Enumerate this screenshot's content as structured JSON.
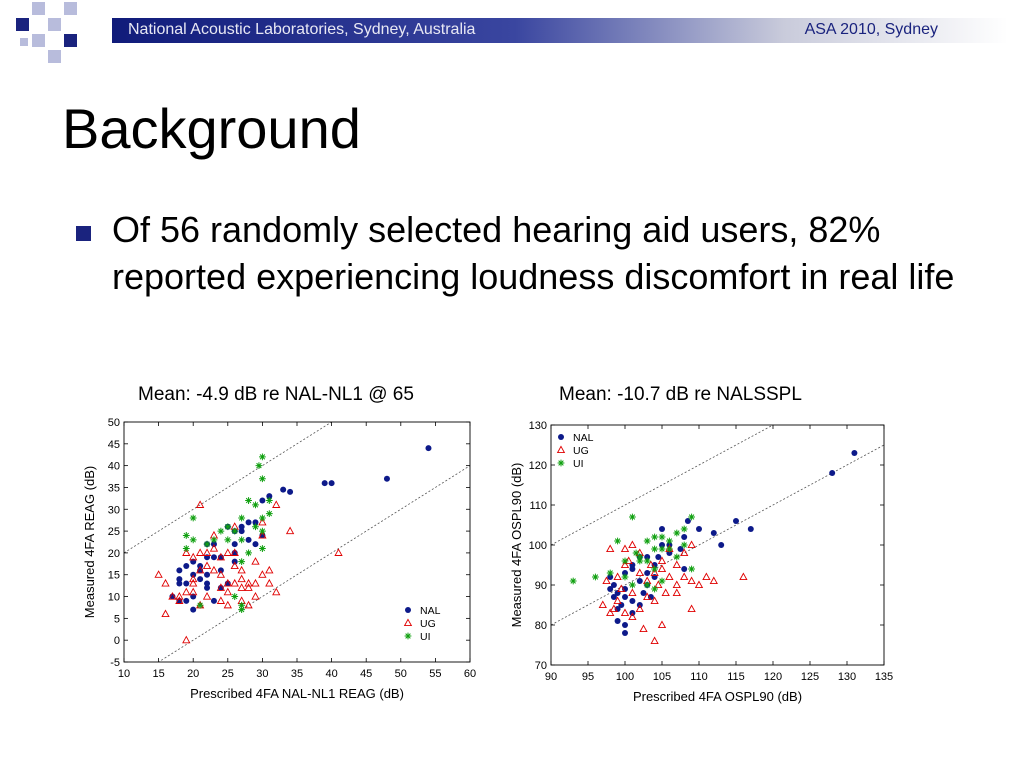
{
  "header": {
    "left_text": "National Acoustic Laboratories, Sydney, Australia",
    "right_text": "ASA 2010, Sydney"
  },
  "slide": {
    "title": "Background",
    "bullet": "Of 56 randomly selected hearing aid users, 82% reported experiencing loudness discomfort in real life"
  },
  "colors": {
    "nal": "#0d1a8a",
    "ug": "#e00000",
    "ui": "#10a010",
    "header": "#101b7a"
  },
  "chart_data": [
    {
      "type": "scatter",
      "caption": "Mean: -4.9 dB re NAL-NL1 @ 65",
      "xlabel": "Prescribed 4FA NAL-NL1 REAG (dB)",
      "ylabel": "Measured 4FA REAG (dB)",
      "xlim": [
        10,
        60
      ],
      "ylim": [
        -5,
        50
      ],
      "xticks": [
        10,
        15,
        20,
        25,
        30,
        35,
        40,
        45,
        50,
        55,
        60
      ],
      "yticks": [
        -5,
        0,
        5,
        10,
        15,
        20,
        25,
        30,
        35,
        40,
        45,
        50
      ],
      "reference_lines": [
        {
          "x": [
            10,
            60
          ],
          "y": [
            20,
            70
          ]
        },
        {
          "x": [
            10,
            60
          ],
          "y": [
            -10,
            40
          ]
        }
      ],
      "legend_position": "bottom-right",
      "series": [
        {
          "name": "NAL",
          "marker": "dot",
          "points": [
            [
              54,
              44
            ],
            [
              48,
              37
            ],
            [
              40,
              36
            ],
            [
              39,
              36
            ],
            [
              34,
              34
            ],
            [
              33,
              34.5
            ],
            [
              31,
              33
            ],
            [
              30,
              32
            ],
            [
              28,
              27
            ],
            [
              26,
              25
            ],
            [
              27,
              26
            ],
            [
              25,
              26
            ],
            [
              23,
              22
            ],
            [
              22,
              22
            ],
            [
              21,
              16
            ],
            [
              20,
              18
            ],
            [
              19,
              17
            ],
            [
              19,
              13
            ],
            [
              18,
              16
            ],
            [
              18,
              14
            ],
            [
              18,
              9
            ],
            [
              17,
              10
            ],
            [
              20,
              15
            ],
            [
              21,
              14
            ],
            [
              22,
              15
            ],
            [
              22,
              13
            ],
            [
              23,
              9
            ],
            [
              24,
              16
            ],
            [
              24,
              19
            ],
            [
              25,
              13
            ],
            [
              26,
              18
            ],
            [
              26,
              22
            ],
            [
              27,
              25
            ],
            [
              28,
              23
            ],
            [
              29,
              22
            ],
            [
              29,
              27
            ],
            [
              30,
              24
            ],
            [
              22,
              19
            ],
            [
              20,
              7
            ],
            [
              23,
              19
            ],
            [
              21,
              17
            ],
            [
              19,
              9
            ],
            [
              18,
              13
            ],
            [
              20,
              10
            ],
            [
              24,
              12
            ],
            [
              22,
              12
            ],
            [
              26,
              20
            ]
          ]
        },
        {
          "name": "UG",
          "marker": "triangle",
          "points": [
            [
              15,
              15
            ],
            [
              16,
              13
            ],
            [
              16,
              6
            ],
            [
              17,
              10
            ],
            [
              18,
              10
            ],
            [
              18,
              9
            ],
            [
              19,
              0
            ],
            [
              19,
              20
            ],
            [
              19,
              11
            ],
            [
              20,
              13
            ],
            [
              20,
              11
            ],
            [
              20,
              14
            ],
            [
              21,
              31
            ],
            [
              21,
              20
            ],
            [
              21,
              16
            ],
            [
              21,
              8
            ],
            [
              22,
              17
            ],
            [
              22,
              10
            ],
            [
              23,
              24
            ],
            [
              23,
              21
            ],
            [
              23,
              16
            ],
            [
              24,
              19
            ],
            [
              24,
              15
            ],
            [
              24,
              12
            ],
            [
              24,
              9
            ],
            [
              25,
              20
            ],
            [
              25,
              13
            ],
            [
              25,
              8
            ],
            [
              26,
              17
            ],
            [
              26,
              13
            ],
            [
              26,
              20
            ],
            [
              27,
              14
            ],
            [
              27,
              16
            ],
            [
              27,
              12
            ],
            [
              27,
              9
            ],
            [
              28,
              13
            ],
            [
              28,
              8
            ],
            [
              28,
              12
            ],
            [
              29,
              18
            ],
            [
              29,
              13
            ],
            [
              29,
              10
            ],
            [
              30,
              15
            ],
            [
              30,
              24
            ],
            [
              30,
              27
            ],
            [
              31,
              16
            ],
            [
              31,
              13
            ],
            [
              32,
              11
            ],
            [
              32,
              31
            ],
            [
              34,
              25
            ],
            [
              41,
              20
            ],
            [
              25,
              11
            ],
            [
              26,
              26
            ],
            [
              22,
              20
            ],
            [
              20,
              19
            ]
          ]
        },
        {
          "name": "UI",
          "marker": "star",
          "points": [
            [
              30,
              42
            ],
            [
              29.5,
              40
            ],
            [
              30,
              37
            ],
            [
              28,
              32
            ],
            [
              29,
              31
            ],
            [
              31,
              32
            ],
            [
              27,
              28
            ],
            [
              26,
              25
            ],
            [
              25,
              26
            ],
            [
              24,
              25
            ],
            [
              23,
              23
            ],
            [
              25,
              23
            ],
            [
              27,
              23
            ],
            [
              27,
              18
            ],
            [
              19,
              24
            ],
            [
              20,
              23
            ],
            [
              19,
              21
            ],
            [
              22,
              22
            ],
            [
              20,
              28
            ],
            [
              26,
              10
            ],
            [
              27,
              7
            ],
            [
              21,
              8
            ],
            [
              29,
              26
            ],
            [
              30,
              25
            ],
            [
              31,
              29
            ],
            [
              30,
              21
            ],
            [
              30,
              28
            ],
            [
              28,
              20
            ],
            [
              27,
              8
            ]
          ]
        }
      ]
    },
    {
      "type": "scatter",
      "caption": "Mean: -10.7 dB re NALSSPL",
      "xlabel": "Prescribed 4FA OSPL90 (dB)",
      "ylabel": "Measured 4FA OSPL90 (dB)",
      "xlim": [
        90,
        135
      ],
      "ylim": [
        70,
        130
      ],
      "xticks": [
        90,
        95,
        100,
        105,
        110,
        115,
        120,
        125,
        130,
        135
      ],
      "yticks": [
        70,
        80,
        90,
        100,
        110,
        120,
        130
      ],
      "reference_lines": [
        {
          "x": [
            90,
            135
          ],
          "y": [
            100,
            145
          ]
        },
        {
          "x": [
            90,
            135
          ],
          "y": [
            80,
            125
          ]
        }
      ],
      "legend_position": "top-left",
      "series": [
        {
          "name": "NAL",
          "marker": "dot",
          "points": [
            [
              131,
              123
            ],
            [
              128,
              118
            ],
            [
              117,
              104
            ],
            [
              115,
              106
            ],
            [
              113,
              100
            ],
            [
              112,
              103
            ],
            [
              110,
              104
            ],
            [
              108.5,
              106
            ],
            [
              108,
              102
            ],
            [
              107.5,
              99
            ],
            [
              108,
              94
            ],
            [
              106,
              100
            ],
            [
              106,
              98
            ],
            [
              105,
              104
            ],
            [
              105,
              100
            ],
            [
              104.5,
              97
            ],
            [
              104,
              95
            ],
            [
              104,
              92
            ],
            [
              103,
              97
            ],
            [
              103,
              93
            ],
            [
              103,
              90
            ],
            [
              102.5,
              88
            ],
            [
              102,
              85
            ],
            [
              102,
              91
            ],
            [
              101,
              95
            ],
            [
              101,
              94
            ],
            [
              101,
              86
            ],
            [
              101,
              83
            ],
            [
              100,
              93
            ],
            [
              100,
              87
            ],
            [
              100,
              80
            ],
            [
              100,
              78
            ],
            [
              99.5,
              85
            ],
            [
              99,
              88
            ],
            [
              99,
              84
            ],
            [
              99,
              81
            ],
            [
              98.5,
              90
            ],
            [
              98.5,
              87
            ],
            [
              98,
              92
            ],
            [
              98,
              89
            ],
            [
              102,
              97
            ],
            [
              100,
              89
            ],
            [
              103.5,
              87
            ]
          ]
        },
        {
          "name": "UG",
          "marker": "triangle",
          "points": [
            [
              97,
              85
            ],
            [
              97.5,
              91
            ],
            [
              98,
              99
            ],
            [
              98,
              83
            ],
            [
              99,
              92
            ],
            [
              99,
              86
            ],
            [
              99.5,
              89
            ],
            [
              100,
              83
            ],
            [
              100,
              95
            ],
            [
              100.5,
              96
            ],
            [
              101,
              100
            ],
            [
              101,
              88
            ],
            [
              101,
              82
            ],
            [
              102,
              98
            ],
            [
              102,
              93
            ],
            [
              102,
              84
            ],
            [
              102.5,
              79
            ],
            [
              103,
              91
            ],
            [
              103,
              87
            ],
            [
              103.5,
              95
            ],
            [
              104,
              86
            ],
            [
              104,
              93
            ],
            [
              104,
              76
            ],
            [
              104.5,
              90
            ],
            [
              105,
              94
            ],
            [
              105,
              96
            ],
            [
              105,
              80
            ],
            [
              105.5,
              88
            ],
            [
              106,
              92
            ],
            [
              107,
              95
            ],
            [
              107,
              90
            ],
            [
              107,
              88
            ],
            [
              108,
              98
            ],
            [
              108,
              92
            ],
            [
              109,
              100
            ],
            [
              109,
              91
            ],
            [
              109,
              84
            ],
            [
              110,
              90
            ],
            [
              111,
              92
            ],
            [
              112,
              91
            ],
            [
              116,
              92
            ],
            [
              100,
              99
            ],
            [
              98.5,
              84
            ],
            [
              106,
              99
            ]
          ]
        },
        {
          "name": "UI",
          "marker": "star",
          "points": [
            [
              93,
              91
            ],
            [
              96,
              92
            ],
            [
              98,
              93
            ],
            [
              99,
              101
            ],
            [
              100,
              96
            ],
            [
              101,
              107
            ],
            [
              101.5,
              98
            ],
            [
              102,
              96
            ],
            [
              102,
              97
            ],
            [
              103,
              101
            ],
            [
              103,
              96
            ],
            [
              104,
              99
            ],
            [
              104,
              102
            ],
            [
              104,
              89
            ],
            [
              105,
              99
            ],
            [
              105,
              102
            ],
            [
              106,
              101
            ],
            [
              106,
              99
            ],
            [
              107,
              103
            ],
            [
              107,
              97
            ],
            [
              108,
              104
            ],
            [
              108,
              100
            ],
            [
              109,
              107
            ],
            [
              109,
              94
            ],
            [
              103,
              90
            ],
            [
              100,
              92
            ],
            [
              101,
              90
            ],
            [
              104,
              94
            ],
            [
              105,
              91
            ]
          ]
        }
      ]
    }
  ]
}
